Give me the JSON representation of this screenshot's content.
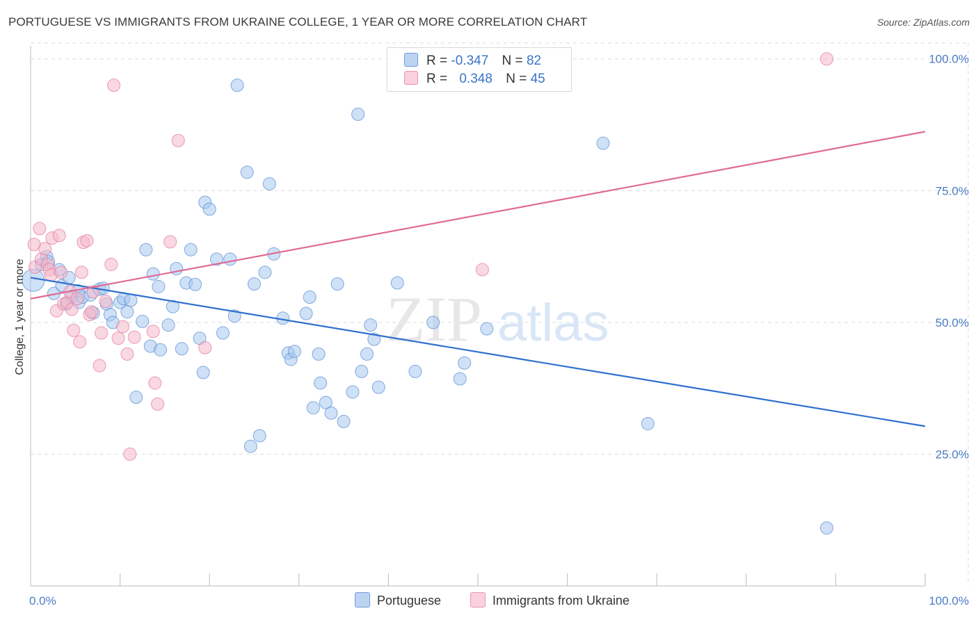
{
  "header": {
    "title": "PORTUGUESE VS IMMIGRANTS FROM UKRAINE COLLEGE, 1 YEAR OR MORE CORRELATION CHART",
    "source": "Source: ZipAtlas.com"
  },
  "watermark": {
    "zip": "ZIP",
    "atlas": "atlas"
  },
  "legend": {
    "rows": [
      {
        "r_label": "R =",
        "r_value": "-0.347",
        "n_label": "N =",
        "n_value": "82",
        "color": "#a8c8ee"
      },
      {
        "r_label": "R =",
        "r_value": "0.348",
        "n_label": "N =",
        "n_value": "45",
        "color": "#f6b8cb"
      }
    ]
  },
  "bottom_legend": {
    "items": [
      {
        "label": "Portuguese",
        "color": "#a8c8ee"
      },
      {
        "label": "Immigrants from Ukraine",
        "color": "#f6b8cb"
      }
    ]
  },
  "chart_data": {
    "type": "scatter",
    "title": "PORTUGUESE VS IMMIGRANTS FROM UKRAINE COLLEGE, 1 YEAR OR MORE CORRELATION CHART",
    "xlabel": "",
    "ylabel": "College, 1 year or more",
    "xlim": [
      0,
      100
    ],
    "ylim": [
      0,
      103
    ],
    "x_tick_labels": {
      "left": "0.0%",
      "right": "100.0%"
    },
    "y_ticks": [
      {
        "value": 25,
        "label": "25.0%"
      },
      {
        "value": 50,
        "label": "50.0%"
      },
      {
        "value": 75,
        "label": "75.0%"
      },
      {
        "value": 100,
        "label": "100.0%"
      }
    ],
    "grid": true,
    "series": [
      {
        "name": "Portuguese",
        "color": "#a8c8ee",
        "edge": "#5d8fd4",
        "trend": {
          "x": [
            0,
            100
          ],
          "y": [
            58.5,
            30.3
          ],
          "color": "#2f6fcf"
        },
        "points": [
          [
            0.3,
            58.0,
            "big"
          ],
          [
            1.2,
            61.0
          ],
          [
            1.8,
            62.5
          ],
          [
            2.0,
            61.5
          ],
          [
            2.6,
            55.5
          ],
          [
            3.2,
            60.0
          ],
          [
            3.5,
            57.0
          ],
          [
            4.0,
            53.5
          ],
          [
            4.3,
            58.5
          ],
          [
            4.6,
            55.0
          ],
          [
            5.3,
            56.0
          ],
          [
            5.4,
            53.8
          ],
          [
            5.8,
            54.8
          ],
          [
            6.7,
            55.2
          ],
          [
            7.0,
            51.8
          ],
          [
            7.7,
            56.3
          ],
          [
            8.1,
            56.5
          ],
          [
            8.5,
            53.5
          ],
          [
            8.9,
            51.5
          ],
          [
            9.2,
            50.0
          ],
          [
            10.0,
            53.8
          ],
          [
            10.4,
            54.5
          ],
          [
            10.8,
            52.0
          ],
          [
            11.2,
            54.2
          ],
          [
            11.8,
            35.8
          ],
          [
            12.5,
            50.2
          ],
          [
            12.9,
            63.8
          ],
          [
            13.4,
            45.5
          ],
          [
            13.7,
            59.2
          ],
          [
            14.3,
            56.8
          ],
          [
            14.5,
            44.8
          ],
          [
            15.4,
            49.5
          ],
          [
            15.9,
            53.0
          ],
          [
            16.3,
            60.2
          ],
          [
            16.9,
            45.0
          ],
          [
            17.4,
            57.5
          ],
          [
            17.9,
            63.8
          ],
          [
            18.4,
            57.2
          ],
          [
            18.9,
            47.0
          ],
          [
            19.3,
            40.5
          ],
          [
            19.5,
            72.8
          ],
          [
            20.0,
            71.5
          ],
          [
            20.8,
            62.0
          ],
          [
            21.5,
            48.0
          ],
          [
            22.3,
            62.0
          ],
          [
            22.8,
            51.2
          ],
          [
            23.1,
            95.0
          ],
          [
            24.2,
            78.5
          ],
          [
            24.6,
            26.5
          ],
          [
            25.0,
            57.3
          ],
          [
            25.6,
            28.5
          ],
          [
            26.2,
            59.5
          ],
          [
            26.7,
            76.3
          ],
          [
            27.2,
            63.0
          ],
          [
            28.2,
            50.8
          ],
          [
            28.8,
            44.2
          ],
          [
            29.1,
            43.0
          ],
          [
            29.5,
            44.5
          ],
          [
            30.8,
            51.7
          ],
          [
            31.2,
            54.8
          ],
          [
            31.6,
            33.8
          ],
          [
            32.2,
            44.0
          ],
          [
            32.4,
            38.5
          ],
          [
            33.0,
            34.8
          ],
          [
            33.6,
            32.8
          ],
          [
            34.3,
            57.3
          ],
          [
            35.0,
            31.2
          ],
          [
            36.0,
            36.8
          ],
          [
            36.6,
            89.5
          ],
          [
            37.0,
            40.7
          ],
          [
            37.6,
            44.0
          ],
          [
            38.0,
            49.5
          ],
          [
            38.4,
            46.8
          ],
          [
            38.9,
            37.7
          ],
          [
            41.0,
            57.5
          ],
          [
            43.0,
            40.7
          ],
          [
            45.0,
            50.0
          ],
          [
            48.0,
            39.3
          ],
          [
            48.5,
            42.3
          ],
          [
            51.0,
            48.8
          ],
          [
            64.0,
            84.0
          ],
          [
            69.0,
            30.8
          ],
          [
            89.0,
            11.0
          ]
        ]
      },
      {
        "name": "Immigrants from Ukraine",
        "color": "#f6b8cb",
        "edge": "#e27c9e",
        "trend": {
          "x": [
            0,
            100
          ],
          "y": [
            54.5,
            86.2
          ],
          "color": "#e06a95"
        },
        "points": [
          [
            0.4,
            64.8
          ],
          [
            0.5,
            60.5
          ],
          [
            1.0,
            67.8
          ],
          [
            1.2,
            62.0
          ],
          [
            1.6,
            64.0
          ],
          [
            1.9,
            61.0
          ],
          [
            2.1,
            60.0
          ],
          [
            2.3,
            59.0
          ],
          [
            2.4,
            66.0
          ],
          [
            2.9,
            52.2
          ],
          [
            3.2,
            66.5
          ],
          [
            3.4,
            59.5
          ],
          [
            3.7,
            53.5
          ],
          [
            4.1,
            53.8
          ],
          [
            4.4,
            55.8
          ],
          [
            4.6,
            52.5
          ],
          [
            4.8,
            48.5
          ],
          [
            5.2,
            54.5
          ],
          [
            5.5,
            46.3
          ],
          [
            5.7,
            59.5
          ],
          [
            5.9,
            65.2
          ],
          [
            6.3,
            65.5
          ],
          [
            6.6,
            51.5
          ],
          [
            6.8,
            52.0
          ],
          [
            7.0,
            55.8
          ],
          [
            7.7,
            41.8
          ],
          [
            7.9,
            48.0
          ],
          [
            8.4,
            54.0
          ],
          [
            9.0,
            61.0
          ],
          [
            9.3,
            95.0
          ],
          [
            9.8,
            47.0
          ],
          [
            10.3,
            49.2
          ],
          [
            10.8,
            44.0
          ],
          [
            11.1,
            25.0
          ],
          [
            11.6,
            47.2
          ],
          [
            13.7,
            48.3
          ],
          [
            13.9,
            38.5
          ],
          [
            14.2,
            34.5
          ],
          [
            15.6,
            65.3
          ],
          [
            16.5,
            84.5
          ],
          [
            19.5,
            45.2
          ],
          [
            50.5,
            60.0
          ],
          [
            89.0,
            100.0
          ]
        ]
      }
    ]
  }
}
